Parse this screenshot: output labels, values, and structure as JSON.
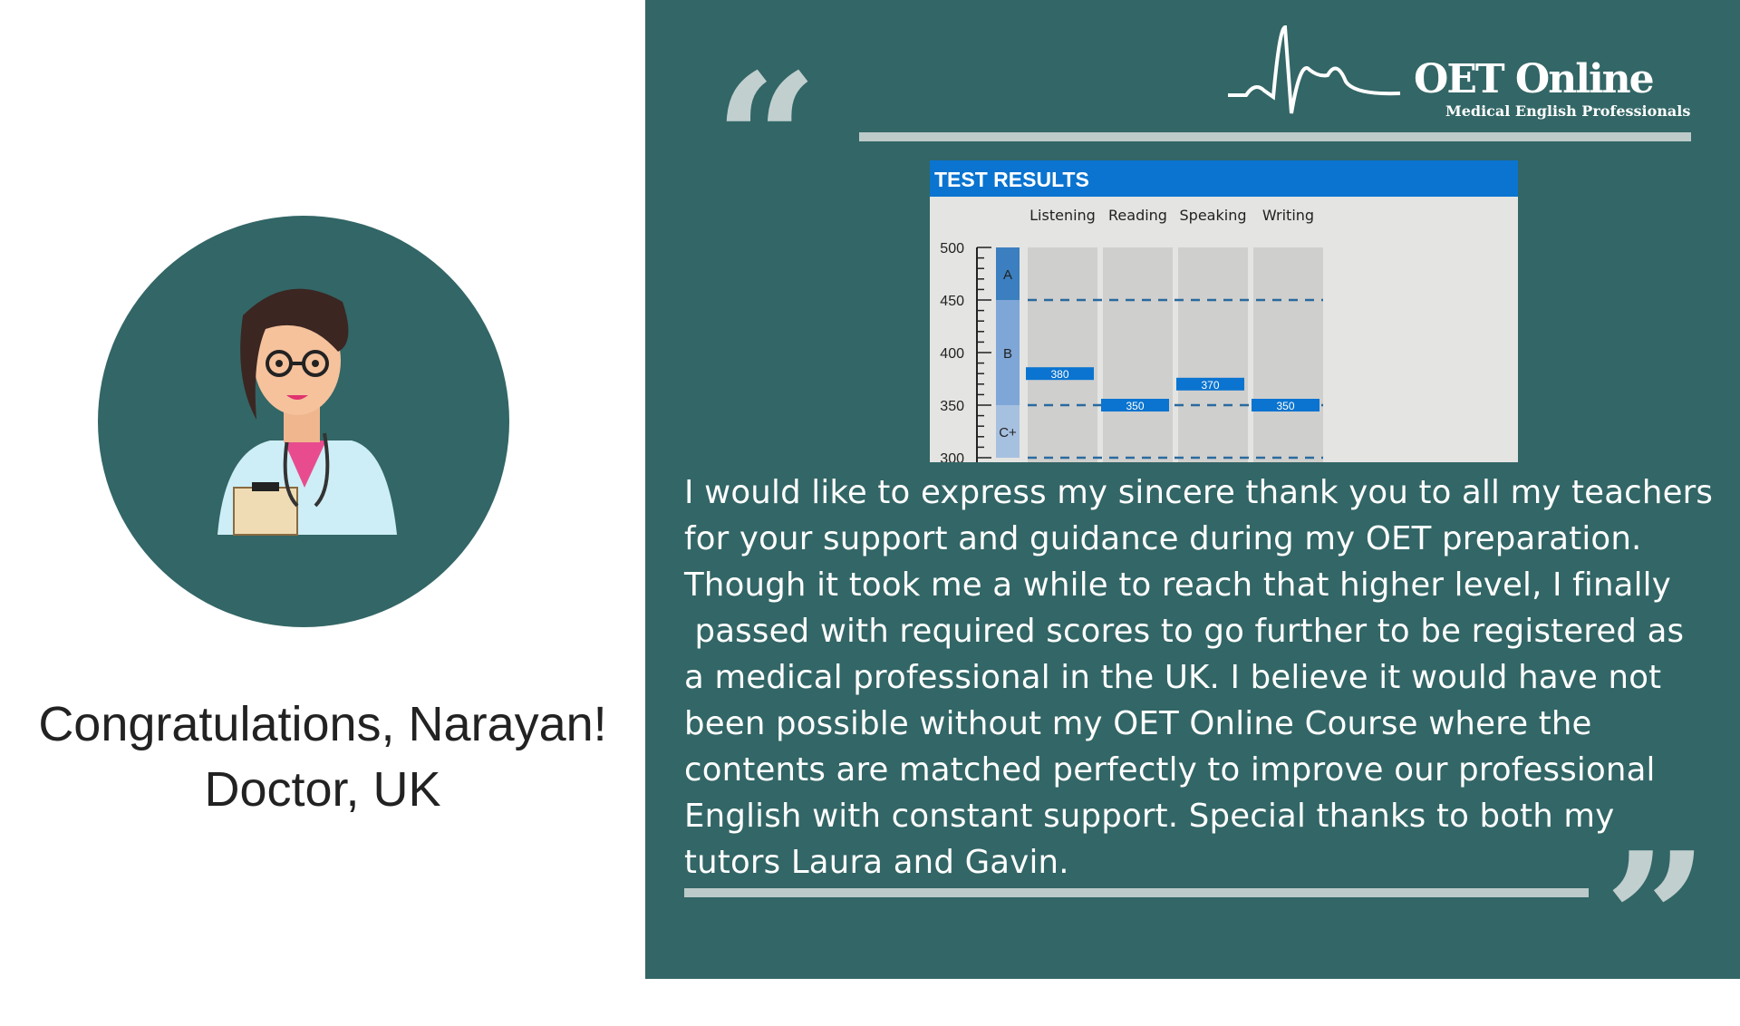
{
  "testimonial": {
    "name_line": "Congratulations, Narayan!",
    "role_line": "Doctor, UK",
    "paragraph_lines": [
      "I would like to express my sincere thank you to all my teachers",
      "for your support and guidance during my OET preparation.",
      "Though it took me a while to reach that higher level, I finally",
      " passed with required scores to go further to be registered as",
      "a medical professional in the UK. I believe it would have not",
      "been possible without my OET Online Course where the",
      "contents are matched perfectly to improve our professional",
      "English with constant support. Special thanks to both my",
      "tutors Laura and Gavin."
    ]
  },
  "logo": {
    "title": "OET Online",
    "subtitle": "Medical English Professionals"
  },
  "colors": {
    "panel": "#336666",
    "accent_blue": "#0a74d0",
    "rule": "#bccaca"
  },
  "chart_data": {
    "type": "bar",
    "title": "TEST RESULTS",
    "categories": [
      "Listening",
      "Reading",
      "Speaking",
      "Writing"
    ],
    "values": [
      380,
      350,
      370,
      350
    ],
    "value_labels": [
      "380",
      "350",
      "370",
      "350"
    ],
    "yticks": [
      "500",
      "450",
      "400",
      "350",
      "300"
    ],
    "ylim": [
      300,
      500
    ],
    "grade_bands": [
      {
        "label": "A",
        "from": 450,
        "to": 500
      },
      {
        "label": "B",
        "from": 350,
        "to": 450
      },
      {
        "label": "C+",
        "from": 300,
        "to": 350
      }
    ],
    "reference_lines": [
      450,
      350,
      300
    ]
  }
}
